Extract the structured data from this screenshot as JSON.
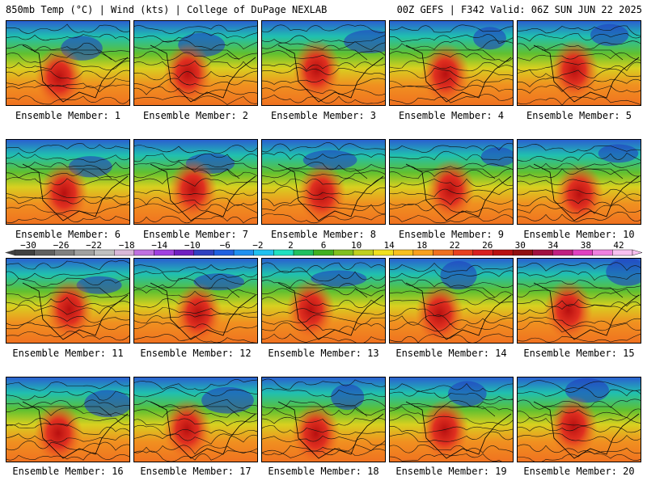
{
  "header": {
    "left_title": "850mb Temp (°C) | Wind (kts) | College of DuPage NEXLAB",
    "right_title": "00Z GEFS | F342 Valid: 06Z SUN JUN 22 2025"
  },
  "panels": [
    {
      "caption": "Ensemble Member: 1"
    },
    {
      "caption": "Ensemble Member: 2"
    },
    {
      "caption": "Ensemble Member: 3"
    },
    {
      "caption": "Ensemble Member: 4"
    },
    {
      "caption": "Ensemble Member: 5"
    },
    {
      "caption": "Ensemble Member: 6"
    },
    {
      "caption": "Ensemble Member: 7"
    },
    {
      "caption": "Ensemble Member: 8"
    },
    {
      "caption": "Ensemble Member: 9"
    },
    {
      "caption": "Ensemble Member: 10"
    },
    {
      "caption": "Ensemble Member: 11"
    },
    {
      "caption": "Ensemble Member: 12"
    },
    {
      "caption": "Ensemble Member: 13"
    },
    {
      "caption": "Ensemble Member: 14"
    },
    {
      "caption": "Ensemble Member: 15"
    },
    {
      "caption": "Ensemble Member: 16"
    },
    {
      "caption": "Ensemble Member: 17"
    },
    {
      "caption": "Ensemble Member: 18"
    },
    {
      "caption": "Ensemble Member: 19"
    },
    {
      "caption": "Ensemble Member: 20"
    }
  ],
  "colorbar": {
    "labels": [
      "−30",
      "−26",
      "−22",
      "−18",
      "−14",
      "−10",
      "−6",
      "−2",
      "2",
      "6",
      "10",
      "14",
      "18",
      "22",
      "26",
      "30",
      "34",
      "38",
      "42"
    ],
    "colors": [
      "#404040",
      "#606060",
      "#808080",
      "#a0a0a0",
      "#c0c0c0",
      "#d9b8d9",
      "#c070e0",
      "#a040e0",
      "#7020c0",
      "#3040c0",
      "#2060e0",
      "#2090f0",
      "#20c0f0",
      "#20e0c0",
      "#20c060",
      "#40b020",
      "#80c020",
      "#c0d020",
      "#f0e020",
      "#f8c020",
      "#f8a020",
      "#f07020",
      "#e84020",
      "#d82020",
      "#b81010",
      "#901010",
      "#a01040",
      "#c02080",
      "#e040c0",
      "#f080e0",
      "#f8c0f0"
    ]
  }
}
